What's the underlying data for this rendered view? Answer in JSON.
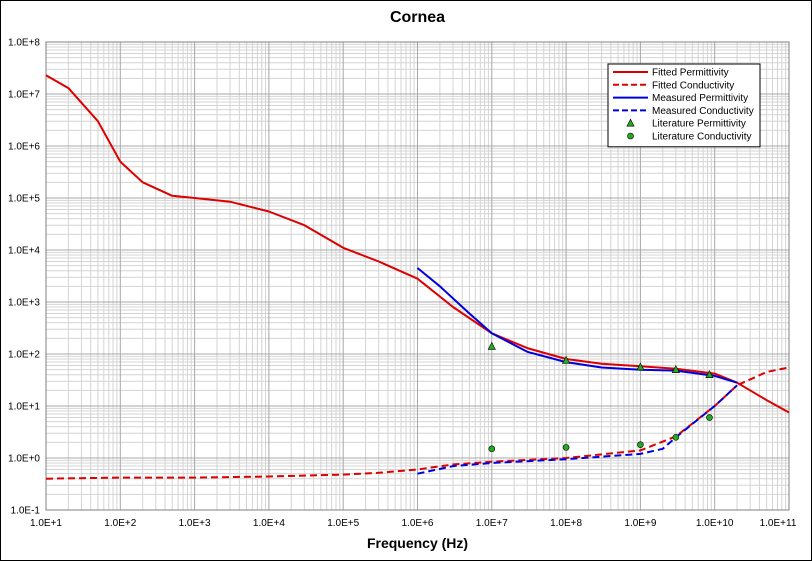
{
  "chart_data": {
    "type": "line",
    "title": "Cornea",
    "xlabel": "Frequency (Hz)",
    "ylabel": "",
    "xscale": "log",
    "yscale": "log",
    "xlim": [
      10,
      100000000000
    ],
    "ylim": [
      0.1,
      100000000
    ],
    "grid": true,
    "legend_position": "top-right",
    "x_tick_labels": [
      "1.0E+1",
      "1.0E+2",
      "1.0E+3",
      "1.0E+4",
      "1.0E+5",
      "1.0E+6",
      "1.0E+7",
      "1.0E+8",
      "1.0E+9",
      "1.0E+10",
      "1.0E+11"
    ],
    "y_tick_labels": [
      "1.0E-1",
      "1.0E+0",
      "1.0E+1",
      "1.0E+2",
      "1.0E+3",
      "1.0E+4",
      "1.0E+5",
      "1.0E+6",
      "1.0E+7",
      "1.0E+8"
    ],
    "series": [
      {
        "name": "Fitted Permittivity",
        "style": "solid",
        "color": "#dd0000",
        "points": [
          [
            10,
            23000000
          ],
          [
            20,
            13000000
          ],
          [
            50,
            3000000
          ],
          [
            100,
            500000
          ],
          [
            200,
            200000
          ],
          [
            500,
            110000
          ],
          [
            1000,
            100000
          ],
          [
            3000,
            85000
          ],
          [
            10000,
            55000
          ],
          [
            30000,
            30000
          ],
          [
            100000,
            11000
          ],
          [
            300000,
            6000
          ],
          [
            1000000,
            2800
          ],
          [
            3000000,
            800
          ],
          [
            10000000,
            250
          ],
          [
            30000000,
            130
          ],
          [
            100000000,
            80
          ],
          [
            300000000,
            65
          ],
          [
            1000000000,
            58
          ],
          [
            3000000000,
            52
          ],
          [
            10000000000,
            42
          ],
          [
            20000000000,
            28
          ],
          [
            50000000000,
            13
          ],
          [
            100000000000,
            7.5
          ]
        ]
      },
      {
        "name": "Fitted Conductivity",
        "style": "dashed",
        "color": "#dd0000",
        "points": [
          [
            10,
            0.4
          ],
          [
            100,
            0.42
          ],
          [
            1000,
            0.42
          ],
          [
            10000,
            0.44
          ],
          [
            100000,
            0.48
          ],
          [
            300000,
            0.52
          ],
          [
            1000000,
            0.6
          ],
          [
            3000000,
            0.75
          ],
          [
            10000000,
            0.85
          ],
          [
            100000000,
            1.0
          ],
          [
            1000000000,
            1.4
          ],
          [
            3000000000,
            2.6
          ],
          [
            10000000000,
            10
          ],
          [
            20000000000,
            25
          ],
          [
            50000000000,
            45
          ],
          [
            100000000000,
            55
          ]
        ]
      },
      {
        "name": "Measured Permittivity",
        "style": "solid",
        "color": "#0000dd",
        "points": [
          [
            1000000,
            4500
          ],
          [
            2000000,
            2000
          ],
          [
            5000000,
            600
          ],
          [
            10000000,
            250
          ],
          [
            30000000,
            110
          ],
          [
            100000000,
            70
          ],
          [
            300000000,
            55
          ],
          [
            1000000000,
            50
          ],
          [
            3000000000,
            48
          ],
          [
            10000000000,
            38
          ],
          [
            20000000000,
            28
          ]
        ]
      },
      {
        "name": "Measured Conductivity",
        "style": "dashed",
        "color": "#0000dd",
        "points": [
          [
            1000000,
            0.5
          ],
          [
            3000000,
            0.7
          ],
          [
            10000000,
            0.8
          ],
          [
            100000000,
            0.95
          ],
          [
            1000000000,
            1.2
          ],
          [
            2000000000,
            1.5
          ],
          [
            3000000000,
            2.5
          ],
          [
            5000000000,
            4.5
          ],
          [
            10000000000,
            10
          ],
          [
            20000000000,
            25
          ]
        ]
      },
      {
        "name": "Literature Permittivity",
        "style": "triangle-marker",
        "color": "#22aa22",
        "points": [
          [
            10000000,
            140
          ],
          [
            100000000,
            75
          ],
          [
            1000000000,
            56
          ],
          [
            3000000000,
            50
          ],
          [
            8500000000,
            40
          ]
        ]
      },
      {
        "name": "Literature Conductivity",
        "style": "circle-marker",
        "color": "#22aa22",
        "points": [
          [
            10000000,
            1.5
          ],
          [
            100000000,
            1.6
          ],
          [
            1000000000,
            1.8
          ],
          [
            3000000000,
            2.5
          ],
          [
            8500000000,
            6
          ]
        ]
      }
    ]
  }
}
